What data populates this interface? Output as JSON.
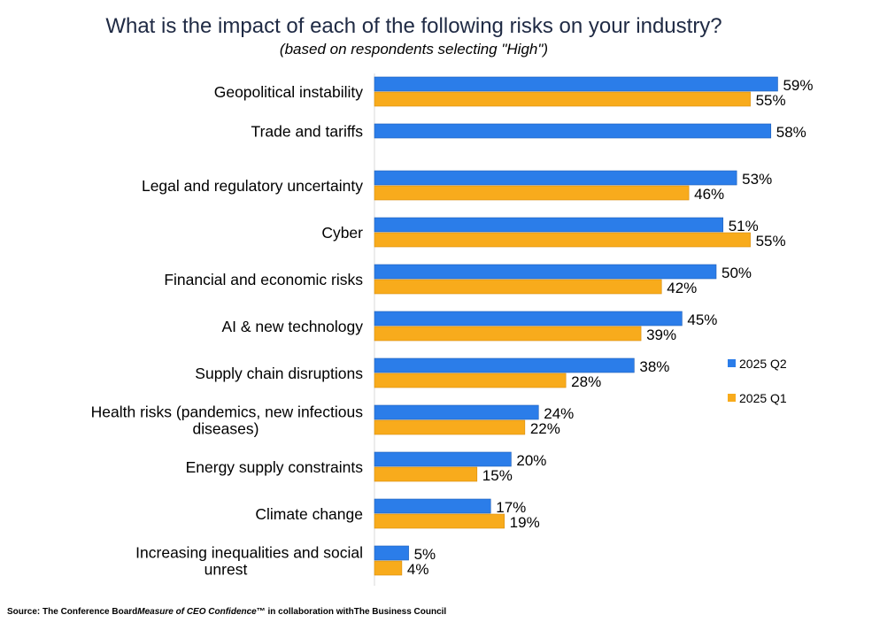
{
  "chart_data": {
    "type": "bar",
    "orientation": "horizontal",
    "title": "What is the impact of each of the following risks on your industry?",
    "subtitle": "(based on respondents selecting \"High\")",
    "categories": [
      "Geopolitical instability",
      "Trade and tariffs",
      "Legal and regulatory uncertainty",
      "Cyber",
      "Financial and economic risks",
      "AI & new technology",
      "Supply chain disruptions",
      "Health risks (pandemics, new infectious diseases)",
      "Energy supply constraints",
      "Climate change",
      "Increasing inequalities and social unrest"
    ],
    "series": [
      {
        "name": "2025 Q2",
        "color": "#2b7de9",
        "values": [
          59,
          58,
          53,
          51,
          50,
          45,
          38,
          24,
          20,
          17,
          5
        ],
        "labels": [
          "59%",
          "58%",
          "53%",
          "51%",
          "50%",
          "45%",
          "38%",
          "24%",
          "20%",
          "17%",
          "5%"
        ]
      },
      {
        "name": "2025 Q1",
        "color": "#f8ab1c",
        "values": [
          55,
          null,
          46,
          55,
          42,
          39,
          28,
          22,
          15,
          19,
          4
        ],
        "labels": [
          "55%",
          "",
          "46%",
          "55%",
          "42%",
          "39%",
          "28%",
          "22%",
          "15%",
          "19%",
          "4%"
        ]
      }
    ],
    "xlim": [
      0,
      63
    ],
    "value_format": "percent",
    "legend_position": "right",
    "grid": false
  },
  "source": {
    "prefix": "Source: The Conference Board",
    "publication": "Measure of CEO Confidence",
    "mark": "™",
    "middle": " in collaboration with",
    "partner": "The Business Council"
  }
}
